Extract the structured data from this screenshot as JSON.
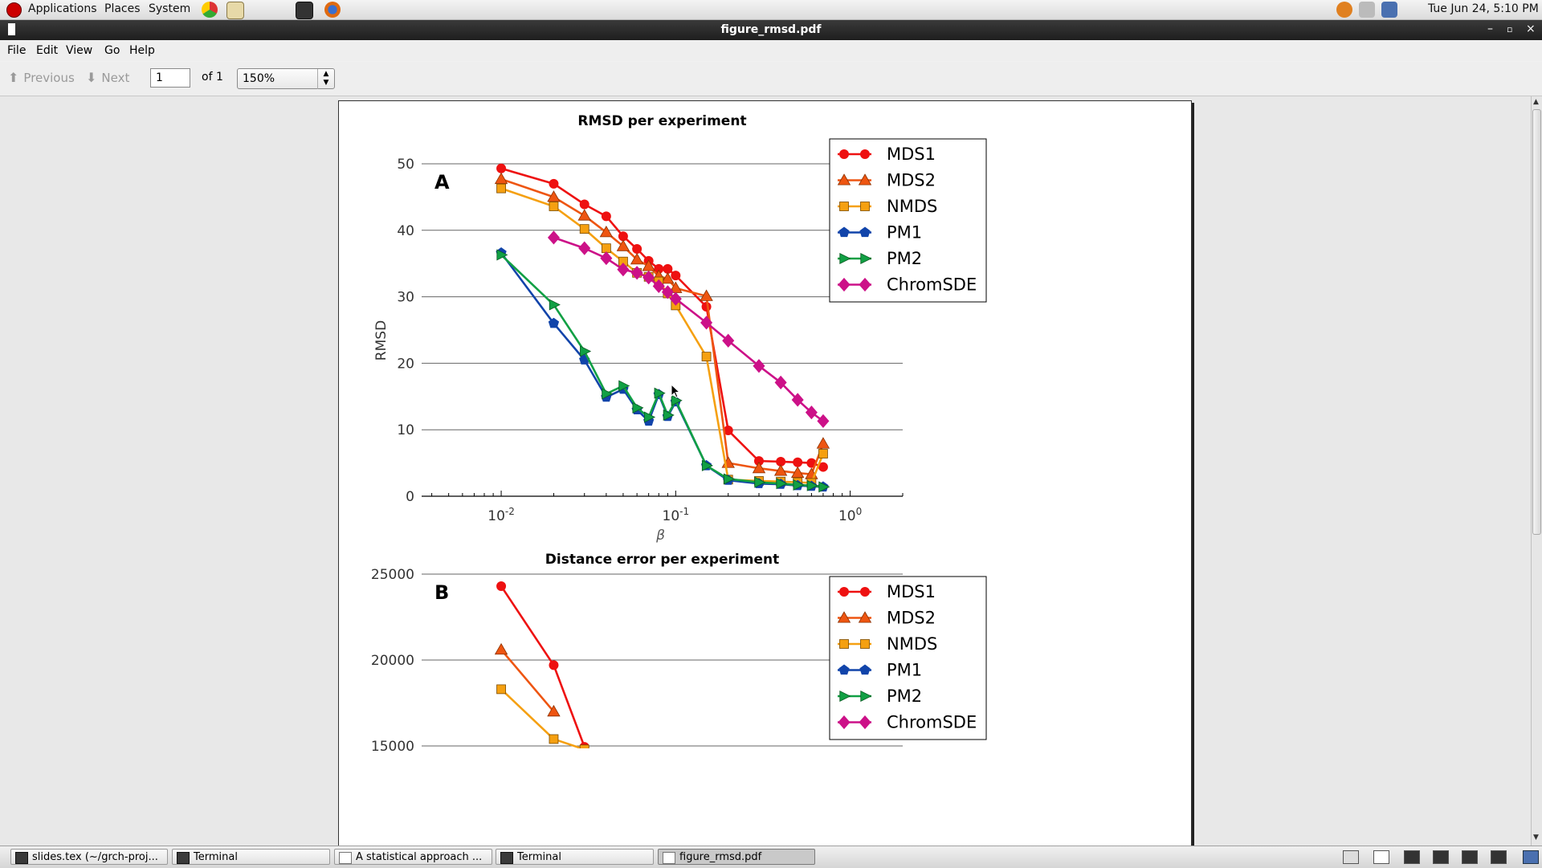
{
  "top_panel": {
    "menus": [
      "Applications",
      "Places",
      "System"
    ],
    "clock": "Tue Jun 24,  5:10 PM"
  },
  "window": {
    "title": "figure_rmsd.pdf"
  },
  "menubar": {
    "items": [
      "File",
      "Edit",
      "View",
      "Go",
      "Help"
    ]
  },
  "toolbar": {
    "previous_label": "Previous",
    "next_label": "Next",
    "page_value": "1",
    "page_of": "of 1",
    "zoom_value": "150%"
  },
  "chart_data": [
    {
      "type": "line",
      "panel_label": "A",
      "title": "RMSD per experiment",
      "xlabel": "β",
      "ylabel": "RMSD",
      "xscale": "log",
      "xlim": [
        0.0035,
        2.0
      ],
      "ylim": [
        0,
        50
      ],
      "yticks": [
        0,
        10,
        20,
        30,
        40,
        50
      ],
      "xticks": [
        {
          "value": 0.01,
          "base": "10",
          "exp": "-2"
        },
        {
          "value": 0.1,
          "base": "10",
          "exp": "-1"
        },
        {
          "value": 1,
          "base": "10",
          "exp": "0"
        }
      ],
      "grid": "horizontal",
      "legend_position": "top-right",
      "series": [
        {
          "name": "MDS1",
          "color": "#ee1111",
          "marker": "circle",
          "x": [
            0.01,
            0.02,
            0.03,
            0.04,
            0.05,
            0.06,
            0.07,
            0.08,
            0.09,
            0.1,
            0.15,
            0.2,
            0.3,
            0.4,
            0.5,
            0.6,
            0.7
          ],
          "y": [
            49.3,
            47.0,
            43.9,
            42.1,
            39.1,
            37.2,
            35.4,
            34.2,
            34.2,
            33.2,
            28.5,
            9.9,
            5.3,
            5.2,
            5.1,
            5.0,
            4.4
          ]
        },
        {
          "name": "MDS2",
          "color": "#ee5511",
          "marker": "triangle",
          "x": [
            0.01,
            0.02,
            0.03,
            0.04,
            0.05,
            0.06,
            0.07,
            0.08,
            0.09,
            0.1,
            0.15,
            0.2,
            0.3,
            0.4,
            0.5,
            0.6,
            0.7
          ],
          "y": [
            47.7,
            45.0,
            42.2,
            39.7,
            37.6,
            35.6,
            34.6,
            33.1,
            32.7,
            31.3,
            30.1,
            5.0,
            4.2,
            3.8,
            3.5,
            3.3,
            7.9
          ]
        },
        {
          "name": "NMDS",
          "color": "#f5a011",
          "marker": "square",
          "x": [
            0.01,
            0.02,
            0.03,
            0.04,
            0.05,
            0.06,
            0.07,
            0.08,
            0.09,
            0.1,
            0.15,
            0.2,
            0.3,
            0.4,
            0.5,
            0.6,
            0.7
          ],
          "y": [
            46.3,
            43.6,
            40.2,
            37.3,
            35.3,
            33.6,
            33.0,
            32.3,
            30.5,
            28.7,
            21.0,
            2.5,
            2.3,
            2.2,
            2.1,
            2.0,
            6.4
          ]
        },
        {
          "name": "PM1",
          "color": "#1144aa",
          "marker": "pentagon",
          "x": [
            0.01,
            0.02,
            0.03,
            0.04,
            0.05,
            0.06,
            0.07,
            0.08,
            0.09,
            0.1,
            0.15,
            0.2,
            0.3,
            0.4,
            0.5,
            0.6,
            0.7
          ],
          "y": [
            36.6,
            26.0,
            20.5,
            14.9,
            16.1,
            13.0,
            11.3,
            15.3,
            12.0,
            14.2,
            4.6,
            2.4,
            1.9,
            1.8,
            1.6,
            1.5,
            1.4
          ]
        },
        {
          "name": "PM2",
          "color": "#11a044",
          "marker": "triangle-right",
          "x": [
            0.01,
            0.02,
            0.03,
            0.04,
            0.05,
            0.06,
            0.07,
            0.08,
            0.09,
            0.1,
            0.15,
            0.2,
            0.3,
            0.4,
            0.5,
            0.6,
            0.7
          ],
          "y": [
            36.3,
            28.8,
            21.8,
            15.4,
            16.6,
            13.3,
            11.9,
            15.5,
            12.2,
            14.4,
            4.6,
            2.6,
            2.1,
            1.9,
            1.7,
            1.6,
            1.4
          ]
        },
        {
          "name": "ChromSDE",
          "color": "#cc1188",
          "marker": "diamond",
          "x": [
            0.02,
            0.03,
            0.04,
            0.05,
            0.06,
            0.07,
            0.08,
            0.09,
            0.1,
            0.15,
            0.2,
            0.3,
            0.4,
            0.5,
            0.6,
            0.7
          ],
          "y": [
            38.9,
            37.3,
            35.8,
            34.1,
            33.6,
            32.9,
            31.6,
            30.7,
            29.7,
            26.1,
            23.4,
            19.6,
            17.1,
            14.5,
            12.6,
            11.3
          ]
        }
      ]
    },
    {
      "type": "line",
      "panel_label": "B",
      "title": "Distance error per experiment",
      "xscale": "log",
      "xlim": [
        0.0035,
        2.0
      ],
      "ylim_visible": [
        15000,
        25000
      ],
      "yticks": [
        15000,
        20000,
        25000
      ],
      "grid": "horizontal",
      "legend_position": "top-right",
      "series": [
        {
          "name": "MDS1",
          "color": "#ee1111",
          "marker": "circle",
          "x": [
            0.01,
            0.02,
            0.03
          ],
          "y": [
            24300,
            19700,
            14950
          ]
        },
        {
          "name": "MDS2",
          "color": "#ee5511",
          "marker": "triangle",
          "x": [
            0.01,
            0.02
          ],
          "y": [
            20600,
            17000
          ]
        },
        {
          "name": "NMDS",
          "color": "#f5a011",
          "marker": "square",
          "x": [
            0.01,
            0.02,
            0.03
          ],
          "y": [
            18300,
            15400,
            14800
          ]
        },
        {
          "name": "PM1",
          "color": "#1144aa",
          "marker": "pentagon",
          "x": [],
          "y": []
        },
        {
          "name": "PM2",
          "color": "#11a044",
          "marker": "triangle-right",
          "x": [],
          "y": []
        },
        {
          "name": "ChromSDE",
          "color": "#cc1188",
          "marker": "diamond",
          "x": [],
          "y": []
        }
      ]
    }
  ],
  "taskbar": {
    "tasks": [
      {
        "label": "slides.tex (~/grch-proj..."
      },
      {
        "label": "Terminal"
      },
      {
        "label": "A statistical approach ..."
      },
      {
        "label": "Terminal"
      },
      {
        "label": "figure_rmsd.pdf"
      }
    ]
  }
}
